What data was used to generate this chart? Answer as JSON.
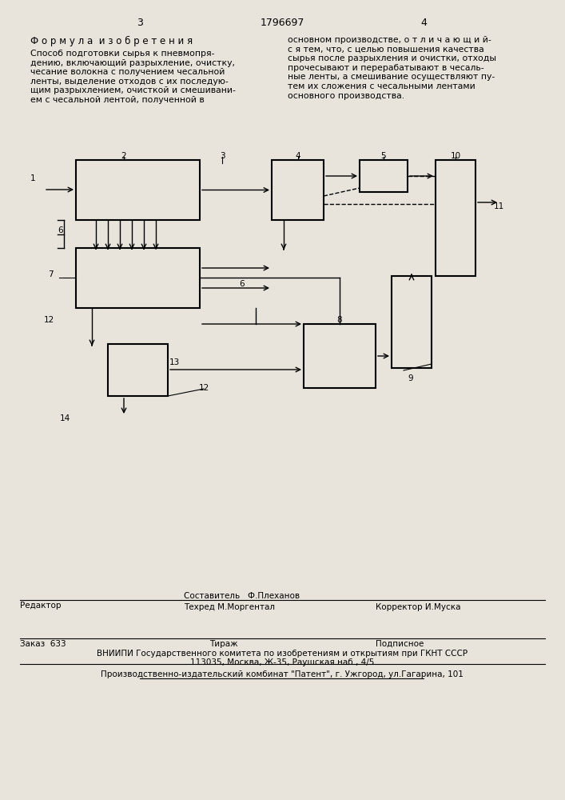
{
  "bg_color": "#e8e4dc",
  "page_num_left": "3",
  "page_num_center": "1796697",
  "page_num_right": "4",
  "formula_title": "Ф о р м у л а  и з о б р е т е н и я",
  "formula_left": "Способ подготовки сырья к пневмопря-\nдению, включающий разрыхление, очистку,\nчесание волокна с получением чесальной\nленты, выделение отходов с их последую-\nщим разрыхлением, очисткой и смешивани-\nем с чесальной лентой, полученной в",
  "formula_right": "основном производстве, о т л и ч а ю щ и й-\nс я тем, что, с целью повышения качества\nсырья после разрыхления и очистки, отходы\nпрочесывают и перерабатывают в чесаль-\nные ленты, а смешивание осуществляют пу-\nтем их сложения с чесальными лентами\nосновного производства.",
  "footer_line1_left": "Редактор",
  "footer_line1_center_top": "Составитель   Ф.Плеханов",
  "footer_line1_center_bot": "Техред М.Моргентал",
  "footer_line1_right": "Корректор И.Муска",
  "footer_order": "Заказ  633",
  "footer_tiraz": "Тираж",
  "footer_podpis": "Подписное",
  "footer_vniip1": "ВНИИПИ Государственного комитета по изобретениям и открытиям при ГКНТ СССР",
  "footer_vniip2": "113035, Москва, Ж-35, Раушская наб., 4/5",
  "footer_patent": "Производственно-издательский комбинат \"Патент\", г. Ужгород, ул.Гагарина, 101"
}
